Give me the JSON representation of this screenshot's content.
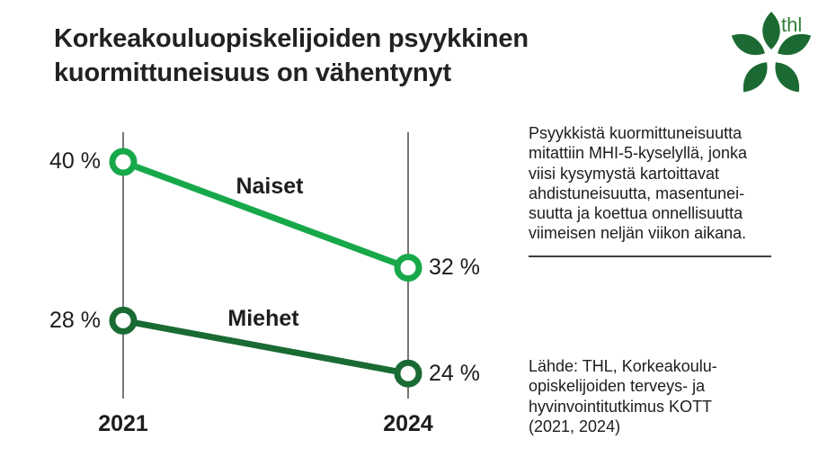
{
  "header": {
    "title": "Korkeakouluopiskelijoiden psyykkinen\nkuormittuneisuus on vähentynyt"
  },
  "logo": {
    "text": "thl",
    "petal_color": "#1c6a33",
    "text_color": "#2f8038"
  },
  "chart_data": {
    "type": "line",
    "title": "Korkeakouluopiskelijoiden psyykkinen kuormittuneisuus on vähentynyt",
    "categories": [
      "2021",
      "2024"
    ],
    "series": [
      {
        "name": "Naiset",
        "values": [
          40,
          32
        ],
        "point_labels": [
          "40 %",
          "32 %"
        ],
        "color": "#17a84a"
      },
      {
        "name": "Miehet",
        "values": [
          28,
          24
        ],
        "point_labels": [
          "28 %",
          "24 %"
        ],
        "color": "#1a6b33"
      }
    ],
    "unit": "%",
    "ylim": [
      20,
      44
    ],
    "grid": false,
    "legend": "inline-labels",
    "x_axis_color": "#4a4a4a"
  },
  "sidebar": {
    "description": "Psyykkistä kuormittuneisuutta\nmitattiin MHI-5-kyselyllä, jonka\nviisi kysymystä kartoittavat\nahdistuneisuutta, masentunei-\nsuutta ja koettua onnellisuutta\nviimeisen neljän viikon aikana.",
    "source": "Lähde: THL, Korkeakoulu-\nopiskelijoiden terveys- ja\nhyvinvointitutkimus KOTT\n(2021, 2024)"
  }
}
